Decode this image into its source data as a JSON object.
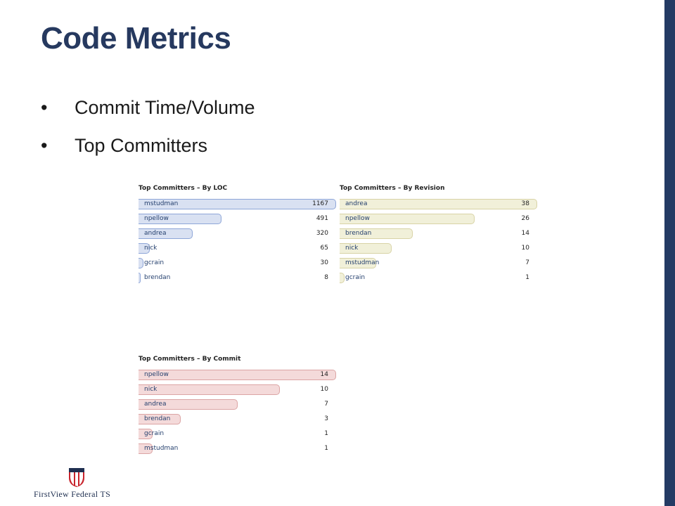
{
  "slide": {
    "title": "Code Metrics",
    "bullets": [
      {
        "marker": "•",
        "text": "Commit Time/Volume"
      },
      {
        "marker": "•",
        "text": "Top Committers"
      }
    ]
  },
  "colors": {
    "title": "#26395f",
    "side_band": "#243b64",
    "loc_fill": "#d9e1f2",
    "loc_border": "#8ea6d8",
    "rev_fill": "#f1f0d9",
    "rev_border": "#d8d3a6",
    "commit_fill": "#f4dada",
    "commit_border": "#dba4a4"
  },
  "chart_data": [
    {
      "type": "bar",
      "title": "Top Committers – By LOC",
      "categories": [
        "mstudman",
        "npellow",
        "andrea",
        "nick",
        "gcrain",
        "brendan"
      ],
      "values": [
        1167,
        491,
        320,
        65,
        30,
        8
      ]
    },
    {
      "type": "bar",
      "title": "Top Committers – By Revision",
      "categories": [
        "andrea",
        "npellow",
        "brendan",
        "nick",
        "mstudman",
        "gcrain"
      ],
      "values": [
        38,
        26,
        14,
        10,
        7,
        1
      ]
    },
    {
      "type": "bar",
      "title": "Top Committers – By Commit",
      "categories": [
        "npellow",
        "nick",
        "andrea",
        "brendan",
        "gcrain",
        "mstudman"
      ],
      "values": [
        14,
        10,
        7,
        3,
        1,
        1
      ]
    }
  ],
  "logo": {
    "text": "FirstView Federal TS",
    "icon": "flag-shield-logo-icon"
  }
}
